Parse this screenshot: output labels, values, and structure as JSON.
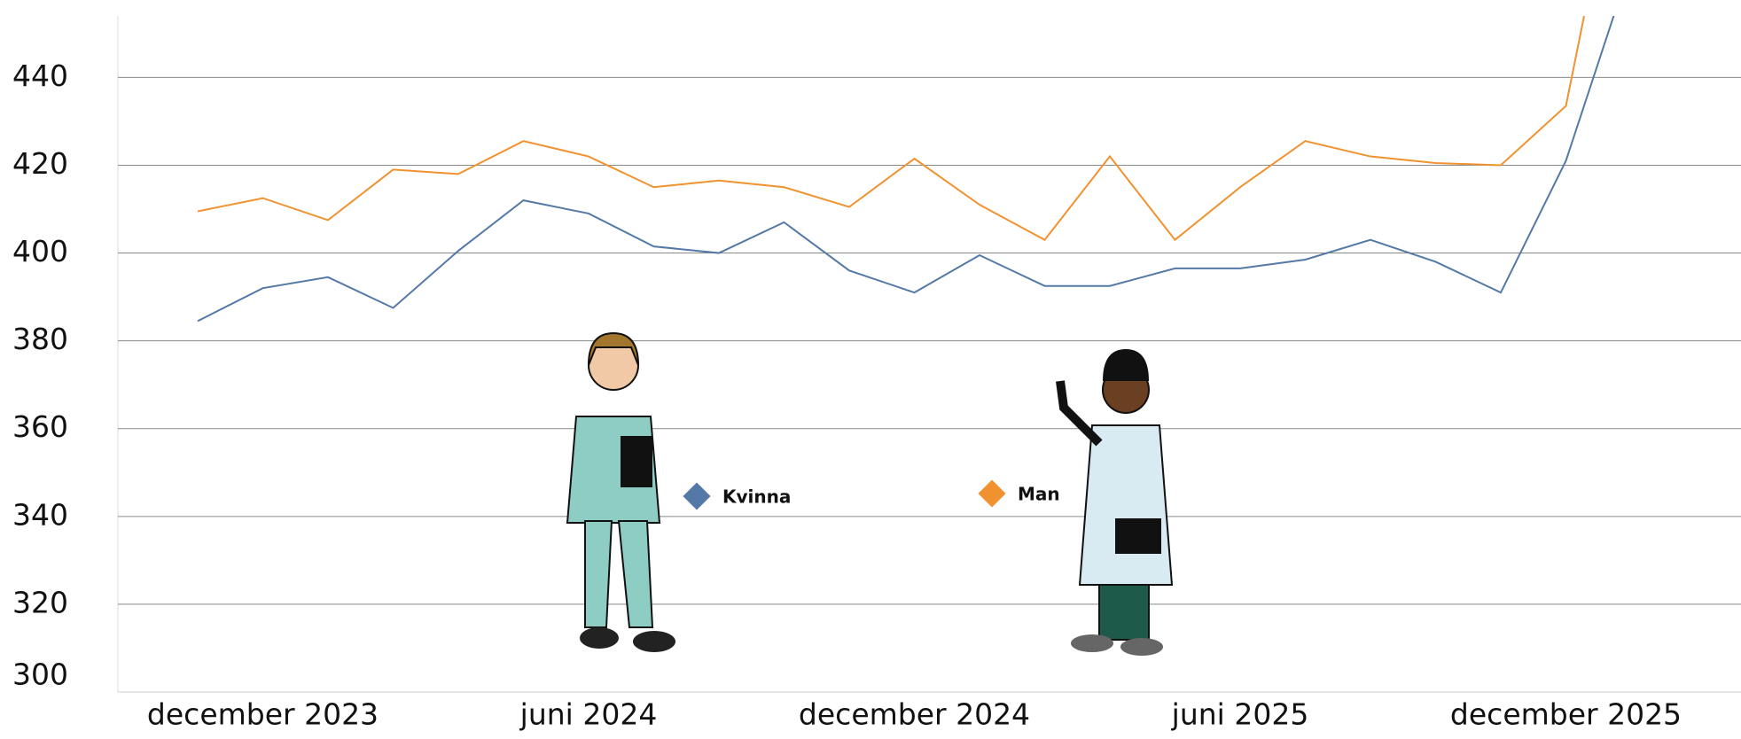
{
  "chart_data": {
    "type": "line",
    "categories": [
      null,
      "december 2023",
      null,
      null,
      null,
      null,
      "juni 2024",
      null,
      null,
      null,
      null,
      "december 2024",
      null,
      null,
      null,
      null,
      "juni 2025",
      null,
      null,
      null,
      null,
      "december 2025",
      null
    ],
    "series": [
      {
        "name": "Kvinna",
        "color": "#5579a6",
        "values": [
          384.5,
          392,
          394.5,
          387.5,
          400.5,
          412,
          409,
          401.5,
          400,
          407,
          396,
          391,
          399.5,
          392.5,
          392.5,
          396.5,
          396.5,
          398.5,
          403,
          398,
          391,
          421,
          466
        ]
      },
      {
        "name": "Man",
        "color": "#f0922f",
        "values": [
          409.5,
          412.5,
          407.5,
          419,
          418,
          425.5,
          422,
          415,
          416.5,
          415,
          410.5,
          421.5,
          411,
          403,
          422,
          403,
          415,
          425.5,
          422,
          420.5,
          420,
          433.5,
          507
        ]
      }
    ],
    "ylim": [
      300,
      454
    ],
    "yticks": [
      300,
      320,
      340,
      360,
      380,
      400,
      420,
      440
    ],
    "grid": true
  }
}
